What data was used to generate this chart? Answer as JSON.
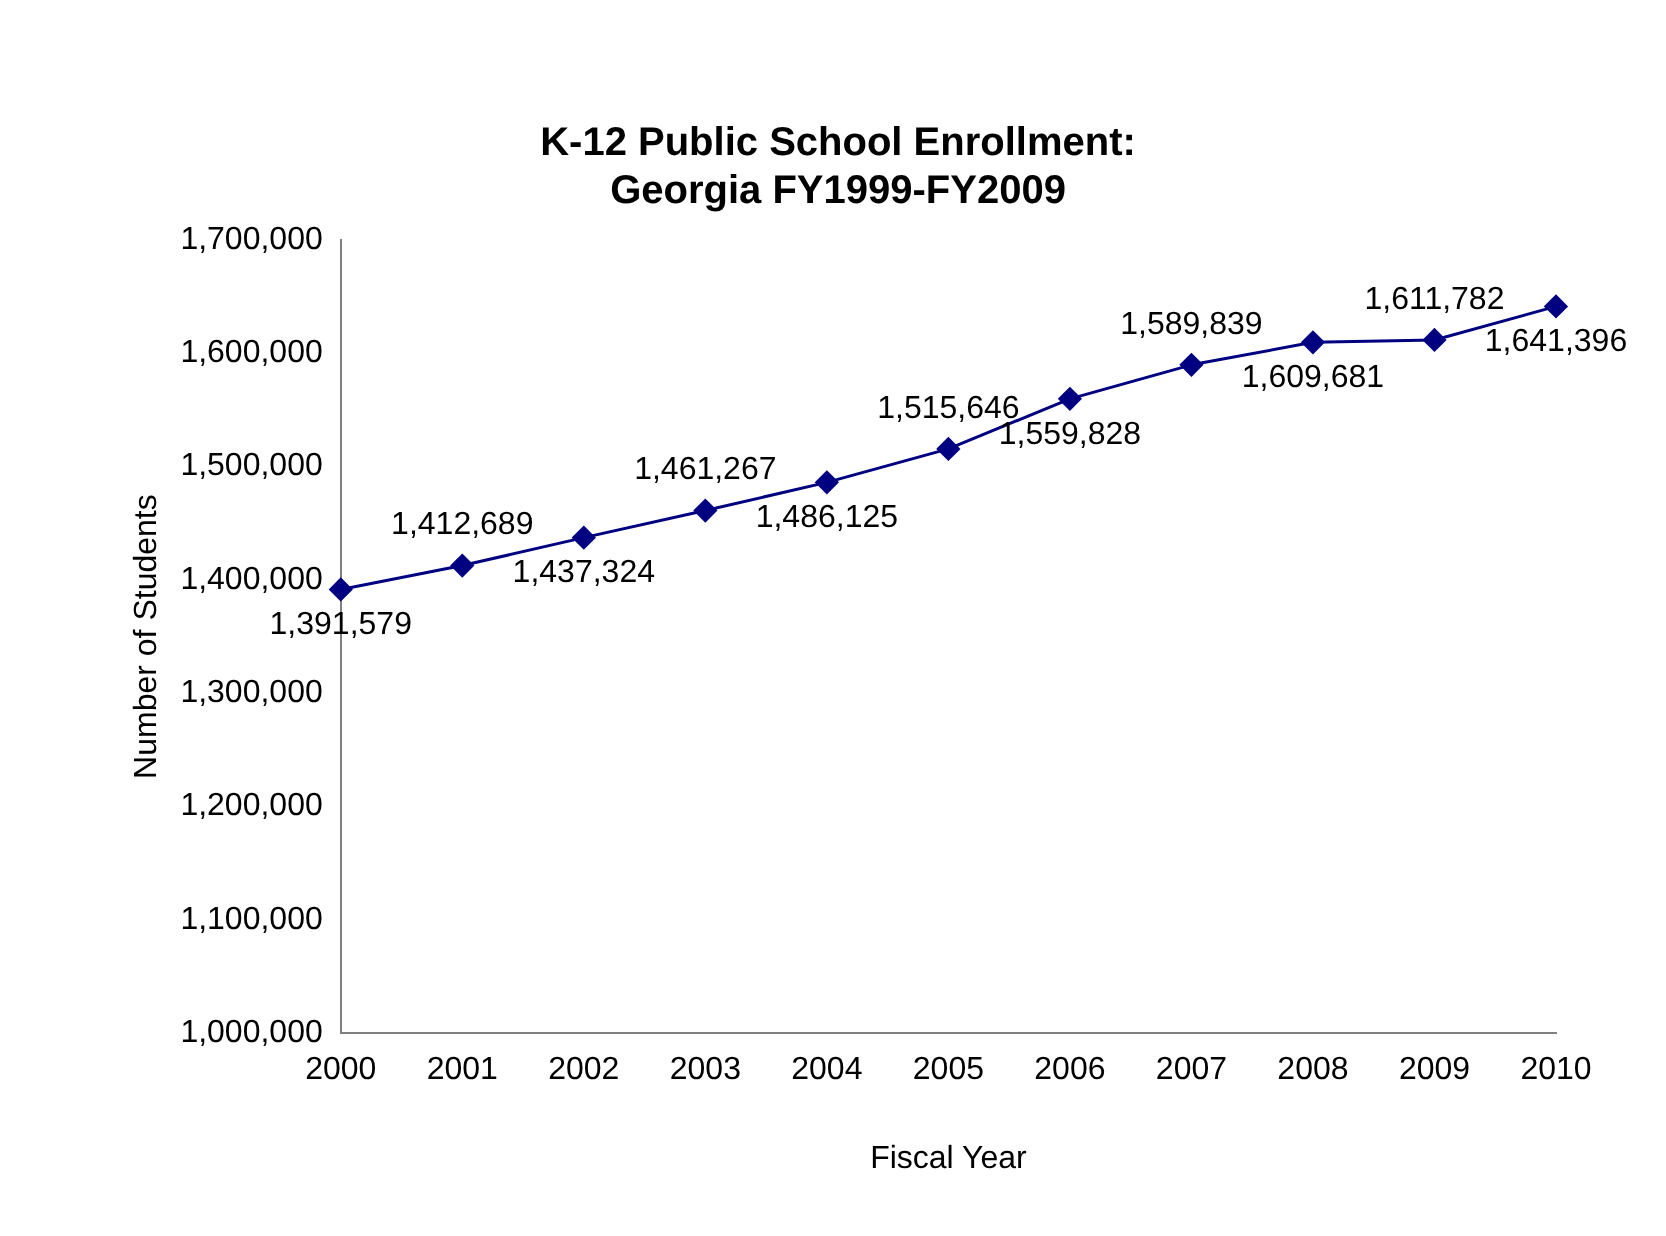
{
  "chart_data": {
    "type": "line",
    "title": "K-12 Public School Enrollment: Georgia FY1999-FY2009",
    "xlabel": "Fiscal Year",
    "ylabel": "Number of Students",
    "categories": [
      "2000",
      "2001",
      "2002",
      "2003",
      "2004",
      "2005",
      "2006",
      "2007",
      "2008",
      "2009",
      "2010"
    ],
    "series": [
      {
        "color": "#000080",
        "values": [
          1391579,
          1412689,
          1437324,
          1461267,
          1486125,
          1515646,
          1559828,
          1589839,
          1609681,
          1611782,
          1641396
        ],
        "value_labels": [
          "1,391,579",
          "1,412,689",
          "1,437,324",
          "1,461,267",
          "1,486,125",
          "1,515,646",
          "1,559,828",
          "1,589,839",
          "1,609,681",
          "1,611,782",
          "1,641,396"
        ]
      }
    ],
    "ylim": [
      1000000,
      1700000
    ],
    "yticks": [
      {
        "value": 1000000,
        "label": "1,000,000"
      },
      {
        "value": 1100000,
        "label": "1,100,000"
      },
      {
        "value": 1200000,
        "label": "1,200,000"
      },
      {
        "value": 1300000,
        "label": "1,300,000"
      },
      {
        "value": 1400000,
        "label": "1,400,000"
      },
      {
        "value": 1500000,
        "label": "1,500,000"
      },
      {
        "value": 1600000,
        "label": "1,600,000"
      },
      {
        "value": 1700000,
        "label": "1,700,000"
      }
    ],
    "grid": false,
    "legend": false,
    "marker": "diamond",
    "line_style": "solid"
  }
}
